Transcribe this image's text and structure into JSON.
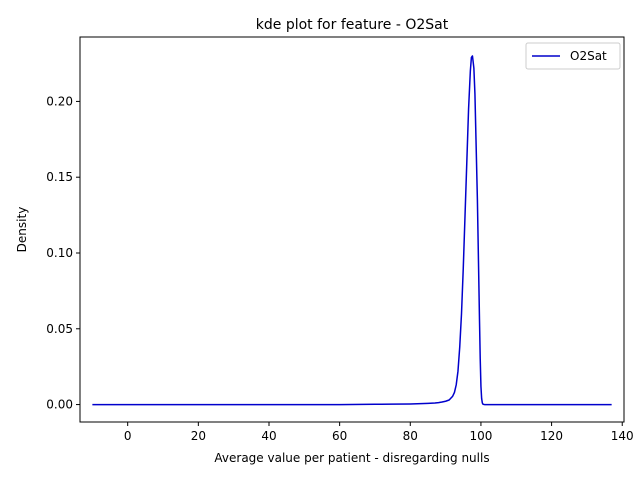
{
  "chart_data": {
    "type": "line",
    "title": "kde plot for feature -  O2Sat",
    "xlabel": "Average value per patient - disregarding nulls",
    "ylabel": "Density",
    "xlim": [
      -13.5,
      140.5
    ],
    "ylim": [
      -0.0115,
      0.2425
    ],
    "xticks": [
      0,
      20,
      40,
      60,
      80,
      100,
      120,
      140
    ],
    "xtick_labels": [
      "0",
      "20",
      "40",
      "60",
      "80",
      "100",
      "120",
      "140"
    ],
    "yticks": [
      0.0,
      0.05,
      0.1,
      0.15,
      0.2
    ],
    "ytick_labels": [
      "0.00",
      "0.05",
      "0.10",
      "0.15",
      "0.20"
    ],
    "grid": false,
    "legend_position": "top-right",
    "series": [
      {
        "name": "O2Sat",
        "color": "#0000cc",
        "x": [
          -10,
          0,
          20,
          40,
          60,
          70,
          75,
          80,
          83,
          85,
          87,
          88,
          89,
          90,
          91,
          92,
          92.5,
          93,
          93.5,
          94,
          94.5,
          95,
          95.5,
          96,
          96.5,
          97,
          97.3,
          97.6,
          98,
          98.3,
          98.6,
          99,
          99.3,
          99.6,
          99.8,
          100,
          100.2,
          100.4,
          100.6,
          101,
          102,
          110,
          120,
          130,
          137
        ],
        "y": [
          0.0,
          0.0,
          0.0,
          0.0,
          0.0,
          0.0002,
          0.0003,
          0.0004,
          0.0006,
          0.0008,
          0.001,
          0.0013,
          0.0017,
          0.0022,
          0.003,
          0.0055,
          0.008,
          0.013,
          0.022,
          0.038,
          0.06,
          0.09,
          0.125,
          0.16,
          0.195,
          0.22,
          0.229,
          0.23,
          0.222,
          0.205,
          0.175,
          0.135,
          0.095,
          0.055,
          0.03,
          0.012,
          0.004,
          0.001,
          0.0002,
          0.0,
          0.0,
          0.0,
          0.0,
          0.0,
          0.0
        ]
      }
    ]
  }
}
